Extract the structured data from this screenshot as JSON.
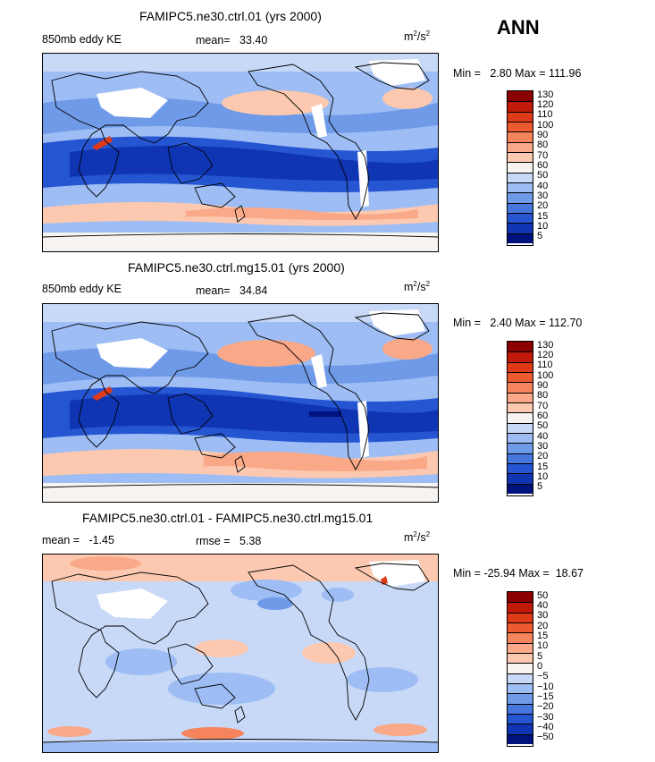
{
  "season": "ANN",
  "units_base": "m",
  "units_exp": "2",
  "units_den": "/s",
  "panels": [
    {
      "title": "FAMIPC5.ne30.ctrl.01 (yrs 2000)",
      "left_label": "850mb eddy KE",
      "mid_label": "mean=",
      "mid_value": "33.40",
      "min_label": "Min =",
      "min_value": "2.80",
      "max_label": "Max =",
      "max_value": "111.96",
      "levels": [
        "130",
        "120",
        "110",
        "100",
        "90",
        "80",
        "70",
        "60",
        "50",
        "40",
        "30",
        "20",
        "15",
        "10",
        "5"
      ],
      "colors": [
        "#8b0000",
        "#c11a0a",
        "#de3a18",
        "#ee5a30",
        "#f5845c",
        "#f9a888",
        "#fcc9b0",
        "#f6f3f0",
        "#c8d9f8",
        "#9dbdf4",
        "#6f9ae8",
        "#4677de",
        "#2555d1",
        "#1035b3",
        "#00127d"
      ]
    },
    {
      "title": "FAMIPC5.ne30.ctrl.mg15.01 (yrs 2000)",
      "left_label": "850mb eddy KE",
      "mid_label": "mean=",
      "mid_value": "34.84",
      "min_label": "Min =",
      "min_value": "2.40",
      "max_label": "Max =",
      "max_value": "112.70",
      "levels": [
        "130",
        "120",
        "110",
        "100",
        "90",
        "80",
        "70",
        "60",
        "50",
        "40",
        "30",
        "20",
        "15",
        "10",
        "5"
      ],
      "colors": [
        "#8b0000",
        "#c11a0a",
        "#de3a18",
        "#ee5a30",
        "#f5845c",
        "#f9a888",
        "#fcc9b0",
        "#f6f3f0",
        "#c8d9f8",
        "#9dbdf4",
        "#6f9ae8",
        "#4677de",
        "#2555d1",
        "#1035b3",
        "#00127d"
      ]
    },
    {
      "title": "FAMIPC5.ne30.ctrl.01 - FAMIPC5.ne30.ctrl.mg15.01",
      "left_label": "mean =",
      "left_value": "-1.45",
      "mid_label": "rmse =",
      "mid_value": "5.38",
      "min_label": "Min =",
      "min_value": "-25.94",
      "max_label": "Max =",
      "max_value": "18.67",
      "levels": [
        "50",
        "40",
        "30",
        "20",
        "15",
        "10",
        "5",
        "0",
        "−5",
        "−10",
        "−15",
        "−20",
        "−30",
        "−40",
        "−50"
      ],
      "colors": [
        "#8b0000",
        "#c11a0a",
        "#de3a18",
        "#ee5a30",
        "#f5845c",
        "#f9a888",
        "#fcc9b0",
        "#f6f3f0",
        "#c8d9f8",
        "#9dbdf4",
        "#6f9ae8",
        "#4677de",
        "#2555d1",
        "#1035b3",
        "#00127d"
      ]
    }
  ]
}
